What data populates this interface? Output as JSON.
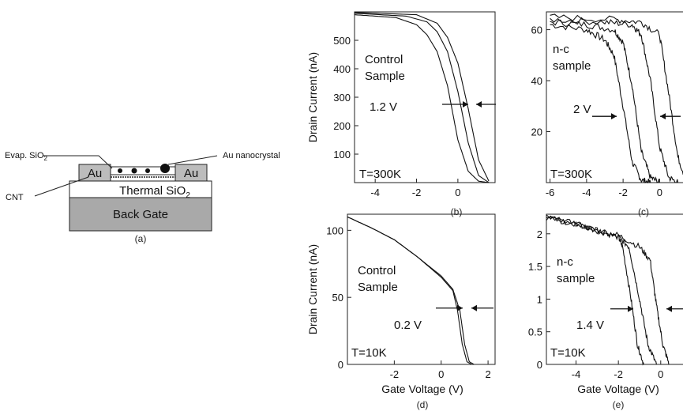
{
  "device": {
    "evap_label": "Evap. SiO",
    "evap_sub": "2",
    "nanocrystal_label": "Au nanocrystal",
    "au_left": "Au",
    "au_right": "Au",
    "thermal_label": "Thermal SiO",
    "thermal_sub": "2",
    "cnt_label": "CNT",
    "backgate_label": "Back Gate",
    "caption": "(a)"
  },
  "chart_data": [
    {
      "id": "b",
      "type": "line",
      "caption": "(b)",
      "xlabel": "",
      "ylabel": "Drain Current (nA)",
      "xlim": [
        -5,
        1.8
      ],
      "ylim": [
        0,
        600
      ],
      "xticks": [
        -4,
        -2,
        0
      ],
      "yticks": [
        100,
        200,
        300,
        400,
        500
      ],
      "annotations": {
        "sample": [
          "Control",
          "Sample"
        ],
        "shift": "1.2 V",
        "temp": "T=300K"
      },
      "shift_arrows_y": 275,
      "series": [
        {
          "x": [
            -5,
            -3,
            -2,
            -1.5,
            -1,
            -0.5,
            0,
            0.5,
            1,
            1.5
          ],
          "y": [
            590,
            580,
            555,
            520,
            460,
            340,
            150,
            40,
            5,
            0
          ]
        },
        {
          "x": [
            -5,
            -2.5,
            -1.5,
            -1,
            -0.5,
            0,
            0.5,
            1,
            1.5
          ],
          "y": [
            595,
            585,
            565,
            530,
            460,
            320,
            140,
            25,
            0
          ]
        },
        {
          "x": [
            -5,
            -2,
            -1,
            -0.5,
            0,
            0.5,
            1,
            1.5
          ],
          "y": [
            598,
            590,
            560,
            510,
            420,
            260,
            80,
            5
          ]
        }
      ]
    },
    {
      "id": "c",
      "type": "line",
      "caption": "(c)",
      "xlabel": "",
      "ylabel": "",
      "xlim": [
        -6.2,
        1.8
      ],
      "ylim": [
        0,
        67
      ],
      "xticks": [
        -6,
        -4,
        -2,
        0
      ],
      "yticks": [
        20,
        40,
        60
      ],
      "annotations": {
        "sample": [
          "n-c",
          "sample"
        ],
        "shift": "2 V",
        "temp": "T=300K"
      },
      "shift_arrows_y": 26,
      "series": [
        {
          "x": [
            -6,
            -4,
            -3,
            -2.5,
            -2,
            -1.5,
            -1,
            -0.5
          ],
          "y": [
            62,
            60,
            56,
            50,
            30,
            8,
            1,
            0
          ]
        },
        {
          "x": [
            -6,
            -4,
            -2.5,
            -2,
            -1.5,
            -1,
            -0.5,
            0
          ],
          "y": [
            63,
            62,
            60,
            55,
            38,
            12,
            2,
            0
          ]
        },
        {
          "x": [
            -6,
            -3,
            -1.5,
            -1,
            -0.5,
            0,
            0.5,
            1
          ],
          "y": [
            64,
            63,
            62,
            58,
            40,
            14,
            2,
            0
          ]
        },
        {
          "x": [
            -6,
            -2.5,
            -1,
            0,
            0.5,
            1,
            1.5
          ],
          "y": [
            65,
            64,
            63,
            58,
            35,
            10,
            0
          ]
        }
      ]
    },
    {
      "id": "d",
      "type": "line",
      "caption": "(d)",
      "xlabel": "Gate Voltage (V)",
      "ylabel": "Drain Current (nA)",
      "xlim": [
        -4,
        2.3
      ],
      "ylim": [
        0,
        112
      ],
      "xticks": [
        -2,
        0,
        2
      ],
      "yticks": [
        0,
        50,
        100
      ],
      "annotations": {
        "sample": [
          "Control",
          "Sample"
        ],
        "shift": "0.2 V",
        "temp": "T=10K"
      },
      "shift_arrows_y": 42,
      "series": [
        {
          "x": [
            -4,
            -3,
            -2,
            -1,
            0,
            0.5,
            0.7,
            0.9,
            1.1,
            1.3
          ],
          "y": [
            110,
            102,
            93,
            80,
            65,
            55,
            40,
            15,
            2,
            0
          ]
        },
        {
          "x": [
            -4,
            -3,
            -2,
            -1,
            0,
            0.5,
            0.8,
            1.0,
            1.2,
            1.4
          ],
          "y": [
            110,
            102,
            93,
            80,
            66,
            56,
            40,
            15,
            2,
            0
          ]
        }
      ]
    },
    {
      "id": "e",
      "type": "line",
      "caption": "(e)",
      "xlabel": "Gate Voltage (V)",
      "ylabel": "",
      "xlim": [
        -5.4,
        1.5
      ],
      "ylim": [
        0,
        2.3
      ],
      "xticks": [
        -4,
        -2,
        0
      ],
      "yticks": [
        0,
        0.5,
        1,
        1.5,
        2
      ],
      "annotations": {
        "sample": [
          "n-c",
          "sample"
        ],
        "shift": "1.4 V",
        "temp": "T=10K"
      },
      "shift_arrows_y": 0.85,
      "series": [
        {
          "x": [
            -5.4,
            -4,
            -3,
            -2,
            -1.8,
            -1.4,
            -1.1,
            -0.8
          ],
          "y": [
            2.25,
            2.15,
            2.05,
            1.95,
            1.8,
            1.0,
            0.3,
            0
          ]
        },
        {
          "x": [
            -5.4,
            -4,
            -3,
            -2,
            -1.5,
            -1.0,
            -0.6,
            -0.2
          ],
          "y": [
            2.25,
            2.15,
            2.05,
            1.95,
            1.8,
            1.0,
            0.3,
            0
          ]
        },
        {
          "x": [
            -5.4,
            -4,
            -3,
            -2,
            -1,
            -0.5,
            -0.2,
            0.1,
            0.4
          ],
          "y": [
            2.25,
            2.15,
            2.05,
            1.98,
            1.8,
            1.6,
            0.9,
            0.3,
            0
          ]
        }
      ]
    }
  ]
}
